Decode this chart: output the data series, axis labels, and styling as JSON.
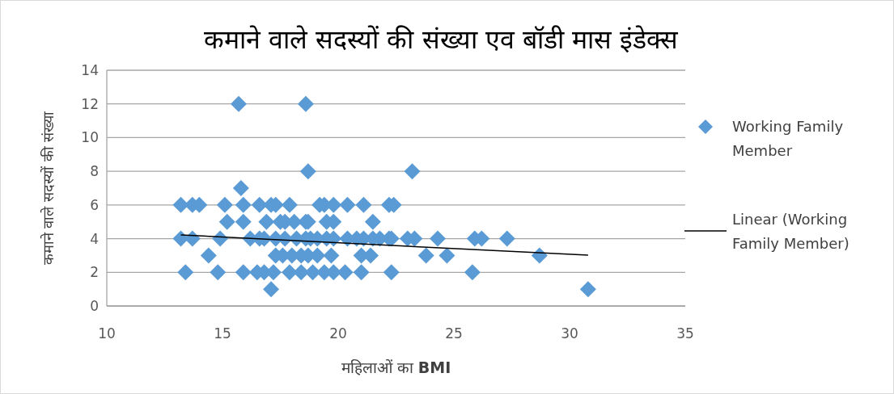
{
  "chart_data": {
    "type": "scatter",
    "title": "कमाने वाले सदस्यों की संख्या एव बॉडी मास इंडेक्स",
    "xlabel": "महिलाओं का **BMI**",
    "ylabel": "कमाने वाले सदस्यों की संख्या",
    "xlim": [
      10,
      35
    ],
    "xticks": [
      10,
      15,
      20,
      25,
      30,
      35
    ],
    "ylim": [
      0,
      14
    ],
    "yticks": [
      0,
      2,
      4,
      6,
      8,
      10,
      12,
      14
    ],
    "grid": "y",
    "legend": "right",
    "series": [
      {
        "name": "Working Family Member",
        "color": "#5b9bd5",
        "marker": "diamond",
        "x": [
          15.7,
          18.6,
          18.7,
          23.2,
          15.8,
          13.2,
          13.7,
          14.0,
          15.1,
          15.9,
          16.6,
          17.1,
          17.3,
          17.9,
          19.2,
          19.4,
          19.8,
          20.4,
          21.1,
          22.2,
          22.4,
          15.2,
          15.9,
          16.9,
          17.5,
          17.7,
          18.1,
          18.6,
          18.7,
          19.5,
          19.8,
          21.5,
          13.2,
          13.7,
          14.9,
          16.2,
          16.6,
          16.8,
          17.3,
          17.7,
          18.2,
          18.6,
          18.8,
          19.1,
          19.5,
          19.8,
          20.4,
          20.8,
          21.1,
          21.5,
          21.8,
          22.2,
          22.3,
          23.0,
          23.3,
          24.3,
          25.9,
          26.2,
          27.3,
          14.4,
          17.3,
          17.6,
          18.0,
          18.4,
          18.7,
          19.1,
          19.7,
          21.0,
          21.4,
          23.8,
          24.7,
          28.7,
          13.4,
          14.8,
          15.9,
          16.5,
          16.8,
          17.2,
          17.9,
          18.4,
          18.9,
          19.4,
          19.8,
          20.3,
          21.0,
          22.3,
          25.8,
          17.1,
          30.8
        ],
        "values": [
          12,
          12,
          8,
          8,
          7,
          6,
          6,
          6,
          6,
          6,
          6,
          6,
          6,
          6,
          6,
          6,
          6,
          6,
          6,
          6,
          6,
          5,
          5,
          5,
          5,
          5,
          5,
          5,
          5,
          5,
          5,
          5,
          4,
          4,
          4,
          4,
          4,
          4,
          4,
          4,
          4,
          4,
          4,
          4,
          4,
          4,
          4,
          4,
          4,
          4,
          4,
          4,
          4,
          4,
          4,
          4,
          4,
          4,
          4,
          3,
          3,
          3,
          3,
          3,
          3,
          3,
          3,
          3,
          3,
          3,
          3,
          3,
          2,
          2,
          2,
          2,
          2,
          2,
          2,
          2,
          2,
          2,
          2,
          2,
          2,
          2,
          2,
          1,
          1
        ]
      },
      {
        "name": "Linear (Working Family Member)",
        "color": "#000000",
        "type": "line",
        "marker": "none",
        "x": [
          13.2,
          30.8
        ],
        "values": [
          4.22,
          3.02
        ]
      }
    ]
  }
}
